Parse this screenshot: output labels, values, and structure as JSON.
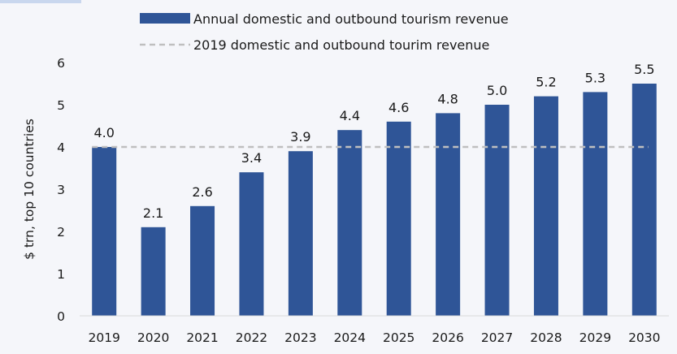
{
  "chart_data": {
    "type": "bar",
    "categories": [
      "2019",
      "2020",
      "2021",
      "2022",
      "2023",
      "2024",
      "2025",
      "2026",
      "2027",
      "2028",
      "2029",
      "2030"
    ],
    "series": [
      {
        "name": "Annual domestic and outbound tourism revenue",
        "values": [
          4.0,
          2.1,
          2.6,
          3.4,
          3.9,
          4.4,
          4.6,
          4.8,
          5.0,
          5.2,
          5.3,
          5.5
        ],
        "data_labels": [
          "4.0",
          "2.1",
          "2.6",
          "3.4",
          "3.9",
          "4.4",
          "4.6",
          "4.8",
          "5.0",
          "5.2",
          "5.3",
          "5.5"
        ],
        "color": "#2f5597"
      }
    ],
    "reference_line": {
      "name": "2019 domestic and outbound tourim revenue",
      "value": 4.0,
      "style": "dashed",
      "color": "#bfbfbf"
    },
    "title": "",
    "xlabel": "",
    "ylabel": "$ trn, top 10 countries",
    "ylim": [
      0,
      6
    ],
    "yticks": [
      "0",
      "1",
      "2",
      "3",
      "4",
      "5",
      "6"
    ],
    "grid": false,
    "legend_position": "top"
  }
}
